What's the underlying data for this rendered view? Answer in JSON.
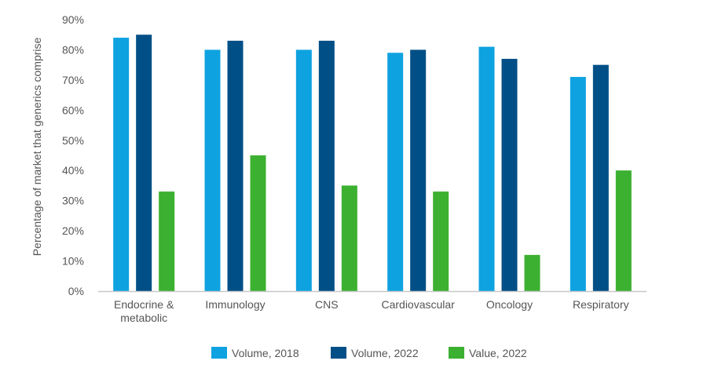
{
  "chart_data": {
    "type": "bar",
    "title": "",
    "xlabel": "",
    "ylabel": "Percentage of market that generics comprise",
    "ylim": [
      0,
      90
    ],
    "yticks": [
      0,
      10,
      20,
      30,
      40,
      50,
      60,
      70,
      80,
      90
    ],
    "ytick_labels": [
      "0%",
      "10%",
      "20%",
      "30%",
      "40%",
      "50%",
      "60%",
      "70%",
      "80%",
      "90%"
    ],
    "grid": false,
    "legend_position": "bottom",
    "categories": [
      [
        "Endocrine &",
        "metabolic"
      ],
      [
        "Immunology"
      ],
      [
        "CNS"
      ],
      [
        "Cardiovascular"
      ],
      [
        "Oncology"
      ],
      [
        "Respiratory"
      ]
    ],
    "series": [
      {
        "name": "Volume, 2018",
        "color": "#0ea2e0",
        "values": [
          84,
          80,
          80,
          79,
          81,
          71
        ]
      },
      {
        "name": "Volume, 2022",
        "color": "#004f86",
        "values": [
          85,
          83,
          83,
          80,
          77,
          75
        ]
      },
      {
        "name": "Value, 2022",
        "color": "#3cb030",
        "values": [
          33,
          45,
          35,
          33,
          12,
          40
        ]
      }
    ]
  }
}
